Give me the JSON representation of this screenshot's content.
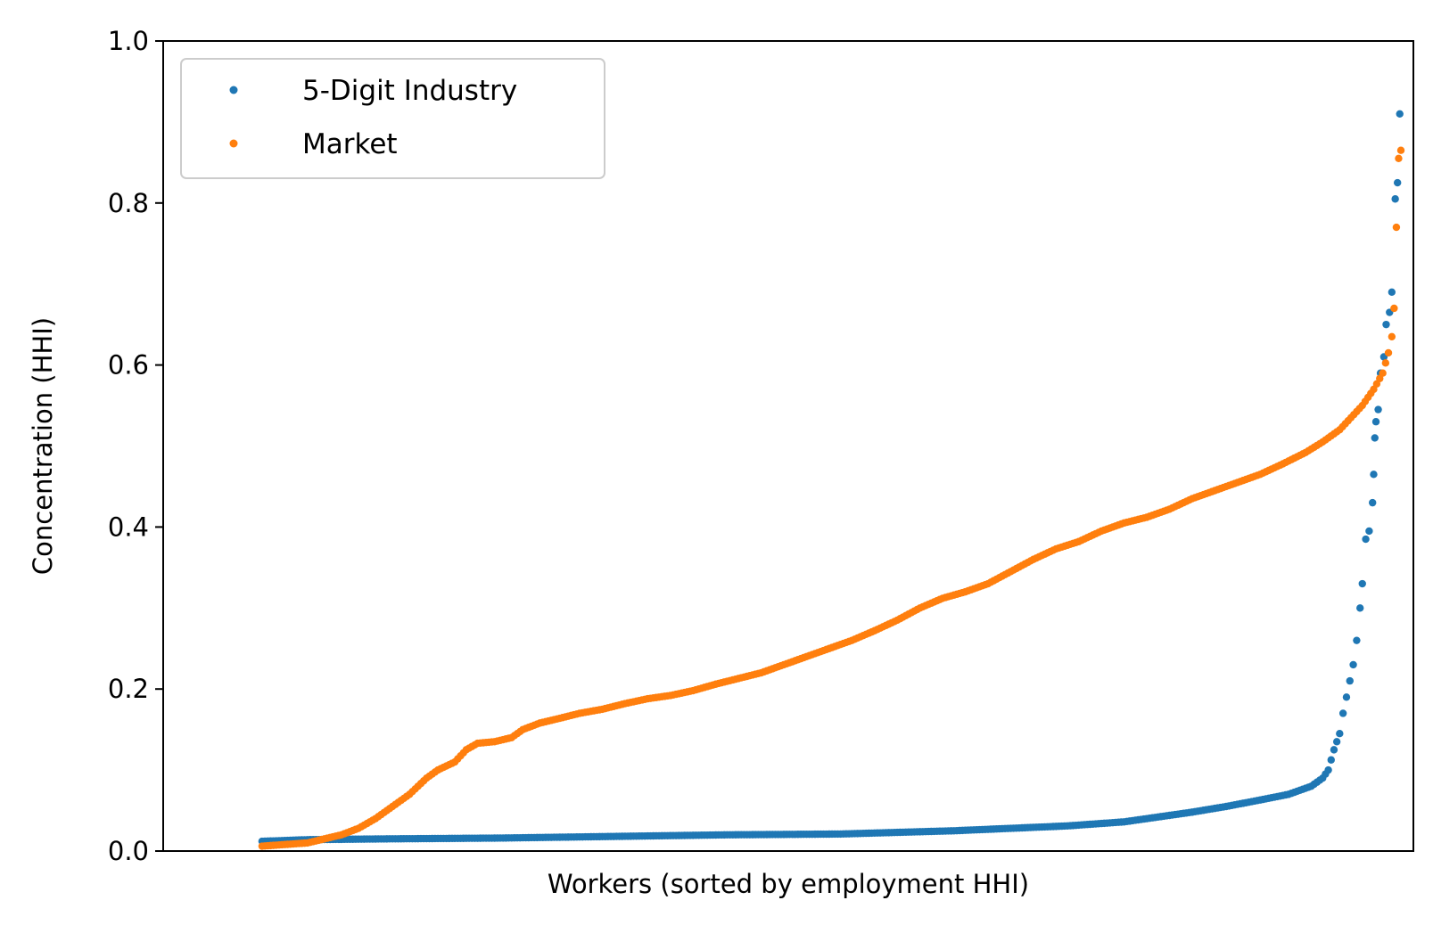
{
  "chart_data": {
    "type": "scatter",
    "title": "",
    "xlabel": "Workers (sorted by employment HHI)",
    "ylabel": "Concentration (HHI)",
    "xlim": [
      0,
      1000
    ],
    "ylim": [
      0,
      1.0
    ],
    "yticks": [
      0.0,
      0.2,
      0.4,
      0.6,
      0.8,
      1.0
    ],
    "ytick_labels": [
      "0.0",
      "0.2",
      "0.4",
      "0.6",
      "0.8",
      "1.0"
    ],
    "xticks_shown": false,
    "grid": false,
    "legend_position": "upper-left",
    "series": [
      {
        "name": "5-Digit Industry",
        "color": "#1f77b4",
        "points": [
          [
            40,
            0.012
          ],
          [
            80,
            0.014
          ],
          [
            150,
            0.015
          ],
          [
            250,
            0.016
          ],
          [
            350,
            0.018
          ],
          [
            450,
            0.02
          ],
          [
            550,
            0.021
          ],
          [
            600,
            0.023
          ],
          [
            650,
            0.025
          ],
          [
            700,
            0.028
          ],
          [
            750,
            0.031
          ],
          [
            800,
            0.036
          ],
          [
            830,
            0.042
          ],
          [
            860,
            0.048
          ],
          [
            890,
            0.055
          ],
          [
            920,
            0.063
          ],
          [
            945,
            0.07
          ],
          [
            965,
            0.08
          ],
          [
            975,
            0.09
          ],
          [
            980,
            0.1
          ],
          [
            985,
            0.125
          ],
          [
            990,
            0.145
          ],
          [
            993,
            0.17
          ],
          [
            996,
            0.19
          ],
          [
            999,
            0.21
          ],
          [
            1002,
            0.23
          ],
          [
            1005,
            0.26
          ],
          [
            1008,
            0.3
          ],
          [
            1010,
            0.33
          ],
          [
            1013,
            0.385
          ],
          [
            1016,
            0.395
          ],
          [
            1019,
            0.43
          ],
          [
            1020,
            0.465
          ],
          [
            1021,
            0.51
          ],
          [
            1022,
            0.53
          ],
          [
            1024,
            0.545
          ],
          [
            1026,
            0.59
          ],
          [
            1029,
            0.61
          ],
          [
            1031,
            0.65
          ],
          [
            1034,
            0.665
          ],
          [
            1036,
            0.69
          ],
          [
            1039,
            0.805
          ],
          [
            1041,
            0.825
          ],
          [
            1043,
            0.91
          ]
        ]
      },
      {
        "name": "Market",
        "color": "#ff7f0e",
        "points": [
          [
            40,
            0.006
          ],
          [
            60,
            0.008
          ],
          [
            80,
            0.01
          ],
          [
            95,
            0.015
          ],
          [
            110,
            0.02
          ],
          [
            125,
            0.028
          ],
          [
            140,
            0.04
          ],
          [
            155,
            0.055
          ],
          [
            170,
            0.07
          ],
          [
            185,
            0.09
          ],
          [
            195,
            0.1
          ],
          [
            210,
            0.11
          ],
          [
            220,
            0.125
          ],
          [
            230,
            0.133
          ],
          [
            245,
            0.135
          ],
          [
            260,
            0.14
          ],
          [
            270,
            0.15
          ],
          [
            285,
            0.158
          ],
          [
            300,
            0.163
          ],
          [
            320,
            0.17
          ],
          [
            340,
            0.175
          ],
          [
            360,
            0.182
          ],
          [
            380,
            0.188
          ],
          [
            400,
            0.192
          ],
          [
            420,
            0.198
          ],
          [
            440,
            0.206
          ],
          [
            460,
            0.213
          ],
          [
            480,
            0.22
          ],
          [
            500,
            0.23
          ],
          [
            520,
            0.24
          ],
          [
            540,
            0.25
          ],
          [
            560,
            0.26
          ],
          [
            580,
            0.272
          ],
          [
            600,
            0.285
          ],
          [
            620,
            0.3
          ],
          [
            640,
            0.312
          ],
          [
            660,
            0.32
          ],
          [
            680,
            0.33
          ],
          [
            700,
            0.345
          ],
          [
            720,
            0.36
          ],
          [
            740,
            0.373
          ],
          [
            760,
            0.382
          ],
          [
            780,
            0.395
          ],
          [
            800,
            0.405
          ],
          [
            820,
            0.412
          ],
          [
            840,
            0.422
          ],
          [
            860,
            0.435
          ],
          [
            880,
            0.445
          ],
          [
            900,
            0.455
          ],
          [
            920,
            0.465
          ],
          [
            940,
            0.478
          ],
          [
            960,
            0.492
          ],
          [
            975,
            0.505
          ],
          [
            990,
            0.52
          ],
          [
            1000,
            0.535
          ],
          [
            1010,
            0.55
          ],
          [
            1020,
            0.57
          ],
          [
            1028,
            0.59
          ],
          [
            1033,
            0.615
          ],
          [
            1036,
            0.635
          ],
          [
            1038,
            0.67
          ],
          [
            1040,
            0.77
          ],
          [
            1042,
            0.855
          ],
          [
            1044,
            0.865
          ]
        ]
      }
    ]
  }
}
